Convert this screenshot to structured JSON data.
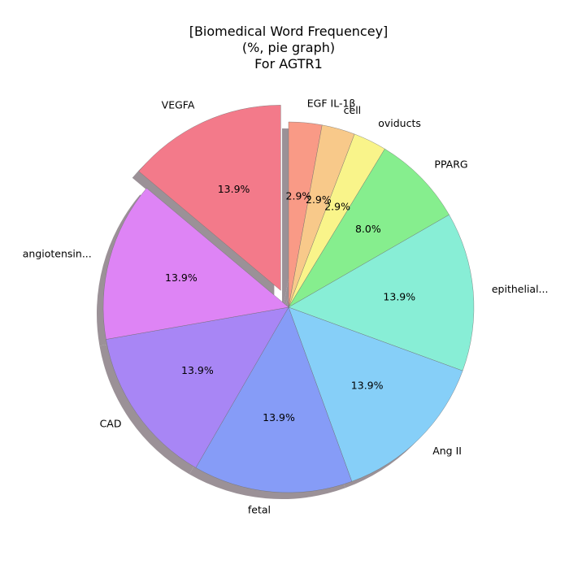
{
  "chart_data": {
    "type": "pie",
    "title_lines": [
      "[Biomedical Word Frequencey]",
      "(%, pie graph)",
      "For AGTR1"
    ],
    "start_angle_deg": 90,
    "direction": "clockwise",
    "shadow": true,
    "slices": [
      {
        "label": "EGF IL-1β",
        "value": 2.9,
        "pct_label": "2.9%",
        "color": "#f99a86",
        "explode": false
      },
      {
        "label": "cell",
        "value": 2.9,
        "pct_label": "2.9%",
        "color": "#f8c98a",
        "explode": false
      },
      {
        "label": "oviducts",
        "value": 2.9,
        "pct_label": "2.9%",
        "color": "#f9f48a",
        "explode": false
      },
      {
        "label": "PPARG",
        "value": 8.0,
        "pct_label": "8.0%",
        "color": "#86ee8e",
        "explode": false
      },
      {
        "label": "epithelial...",
        "value": 13.9,
        "pct_label": "13.9%",
        "color": "#88eed6",
        "explode": false
      },
      {
        "label": "Ang II",
        "value": 13.9,
        "pct_label": "13.9%",
        "color": "#86cff8",
        "explode": false
      },
      {
        "label": "fetal",
        "value": 13.9,
        "pct_label": "13.9%",
        "color": "#869cf7",
        "explode": false
      },
      {
        "label": "CAD",
        "value": 13.9,
        "pct_label": "13.9%",
        "color": "#a886f5",
        "explode": false
      },
      {
        "label": "angiotensin...",
        "value": 13.9,
        "pct_label": "13.9%",
        "color": "#de84f5",
        "explode": false
      },
      {
        "label": "VEGFA",
        "value": 13.9,
        "pct_label": "13.9%",
        "color": "#f37a8a",
        "explode": true
      }
    ]
  }
}
